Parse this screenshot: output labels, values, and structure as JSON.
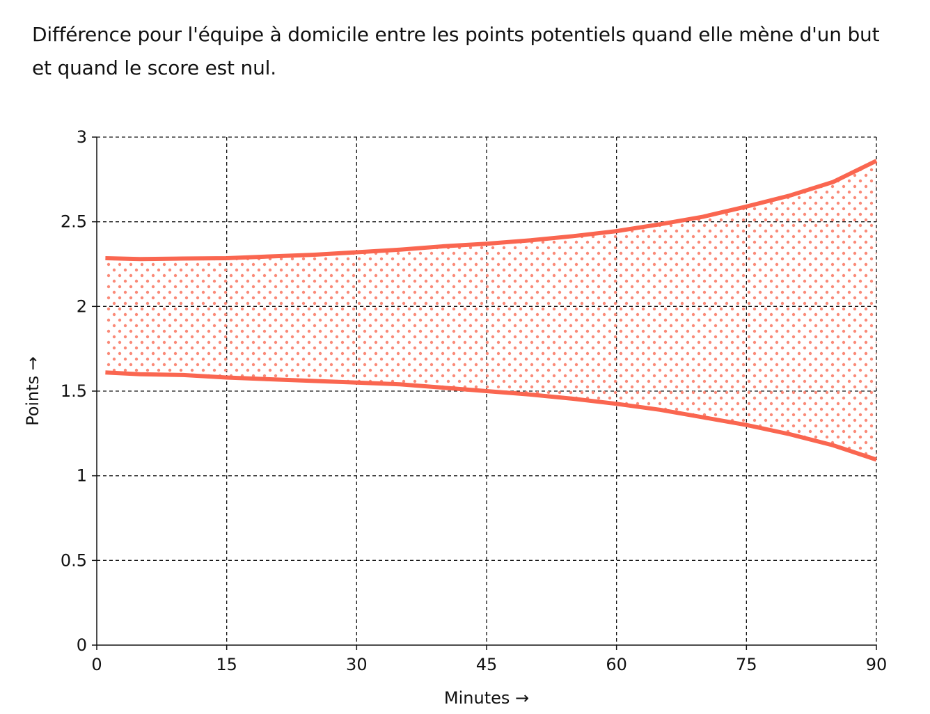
{
  "chart_data": {
    "type": "area",
    "title": "Différence pour l'équipe à domicile entre les points potentiels quand elle mène d'un but et quand le score est nul.",
    "xlabel": "Minutes →",
    "ylabel": "Points →",
    "xlim": [
      0,
      90
    ],
    "ylim": [
      0,
      3
    ],
    "x_ticks": [
      "0",
      "15",
      "30",
      "45",
      "60",
      "75",
      "90"
    ],
    "y_ticks": [
      "0",
      "0.5",
      "1",
      "1.5",
      "2",
      "2.5",
      "3"
    ],
    "x_tick_values": [
      0,
      15,
      30,
      45,
      60,
      75,
      90
    ],
    "y_tick_values": [
      0,
      0.5,
      1,
      1.5,
      2,
      2.5,
      3
    ],
    "grid": true,
    "color": "#fa6650",
    "fill_pattern": "dots",
    "x": [
      1,
      5,
      10,
      15,
      20,
      25,
      30,
      35,
      40,
      45,
      50,
      55,
      60,
      65,
      70,
      75,
      80,
      85,
      90
    ],
    "series": [
      {
        "values": [
          2.285,
          2.28,
          2.283,
          2.285,
          2.295,
          2.305,
          2.32,
          2.335,
          2.355,
          2.37,
          2.39,
          2.415,
          2.445,
          2.485,
          2.53,
          2.59,
          2.655,
          2.735,
          2.86
        ]
      },
      {
        "values": [
          1.61,
          1.6,
          1.595,
          1.58,
          1.57,
          1.56,
          1.55,
          1.54,
          1.52,
          1.5,
          1.48,
          1.455,
          1.425,
          1.39,
          1.345,
          1.3,
          1.245,
          1.18,
          1.095
        ]
      }
    ]
  }
}
